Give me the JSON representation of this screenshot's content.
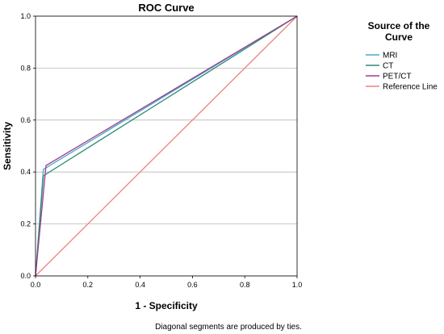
{
  "chart_data": {
    "type": "line",
    "title": "ROC Curve",
    "xlabel": "1 - Specificity",
    "ylabel": "Sensitivity",
    "xlim": [
      0.0,
      1.0
    ],
    "ylim": [
      0.0,
      1.0
    ],
    "x_ticks": [
      "0.0",
      "0.2",
      "0.4",
      "0.6",
      "0.8",
      "1.0"
    ],
    "y_ticks": [
      "0.0",
      "0.2",
      "0.4",
      "0.6",
      "0.8",
      "1.0"
    ],
    "grid": "horizontal",
    "legend": {
      "title_lines": [
        "Source of the",
        "Curve"
      ],
      "position": "right"
    },
    "series": [
      {
        "name": "MRI",
        "color": "#4aa6c8",
        "x": [
          0.0,
          0.03,
          1.0
        ],
        "y": [
          0.0,
          0.41,
          1.0
        ]
      },
      {
        "name": "CT",
        "color": "#2e8b7a",
        "x": [
          0.0,
          0.03,
          1.0
        ],
        "y": [
          0.0,
          0.385,
          1.0
        ]
      },
      {
        "name": "PET/CT",
        "color": "#9b3f8e",
        "x": [
          0.0,
          0.04,
          1.0
        ],
        "y": [
          0.0,
          0.425,
          1.0
        ]
      },
      {
        "name": "Reference Line",
        "color": "#f08080",
        "x": [
          0.0,
          1.0
        ],
        "y": [
          0.0,
          1.0
        ]
      }
    ]
  },
  "footnote": "Diagonal segments are produced by ties."
}
